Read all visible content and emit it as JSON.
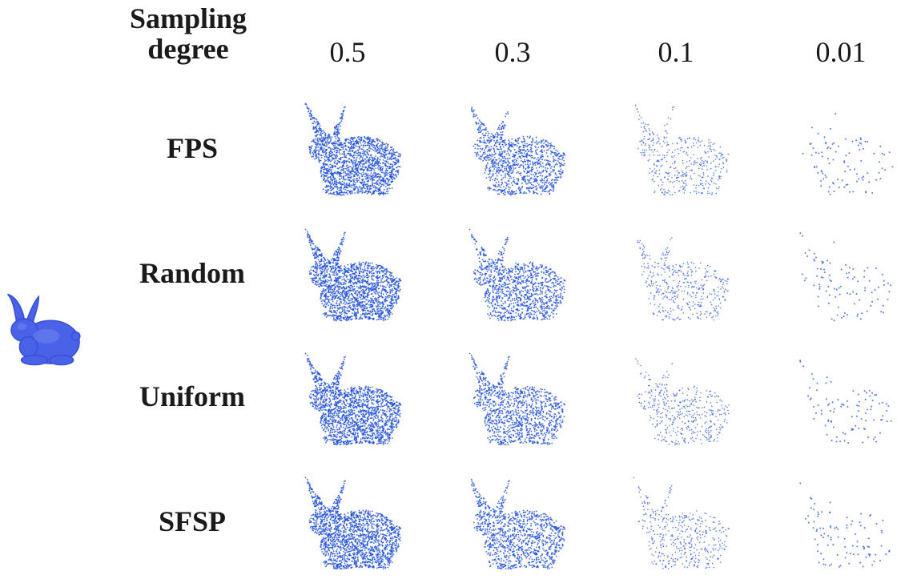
{
  "header": {
    "line1": "Sampling",
    "line2": "degree"
  },
  "sampling_degrees": [
    "0.5",
    "0.3",
    "0.1",
    "0.01"
  ],
  "sampling_fractions": [
    0.5,
    0.3,
    0.1,
    0.01
  ],
  "methods": [
    "FPS",
    "Random",
    "Uniform",
    "SFSP"
  ],
  "icons": {
    "original": "bunny-original-icon",
    "sampled": "bunny-point-cloud-icon"
  },
  "colors": {
    "point": "#1e4fd8",
    "original_fill": "#4a62e8",
    "original_edge": "#3550d6"
  }
}
